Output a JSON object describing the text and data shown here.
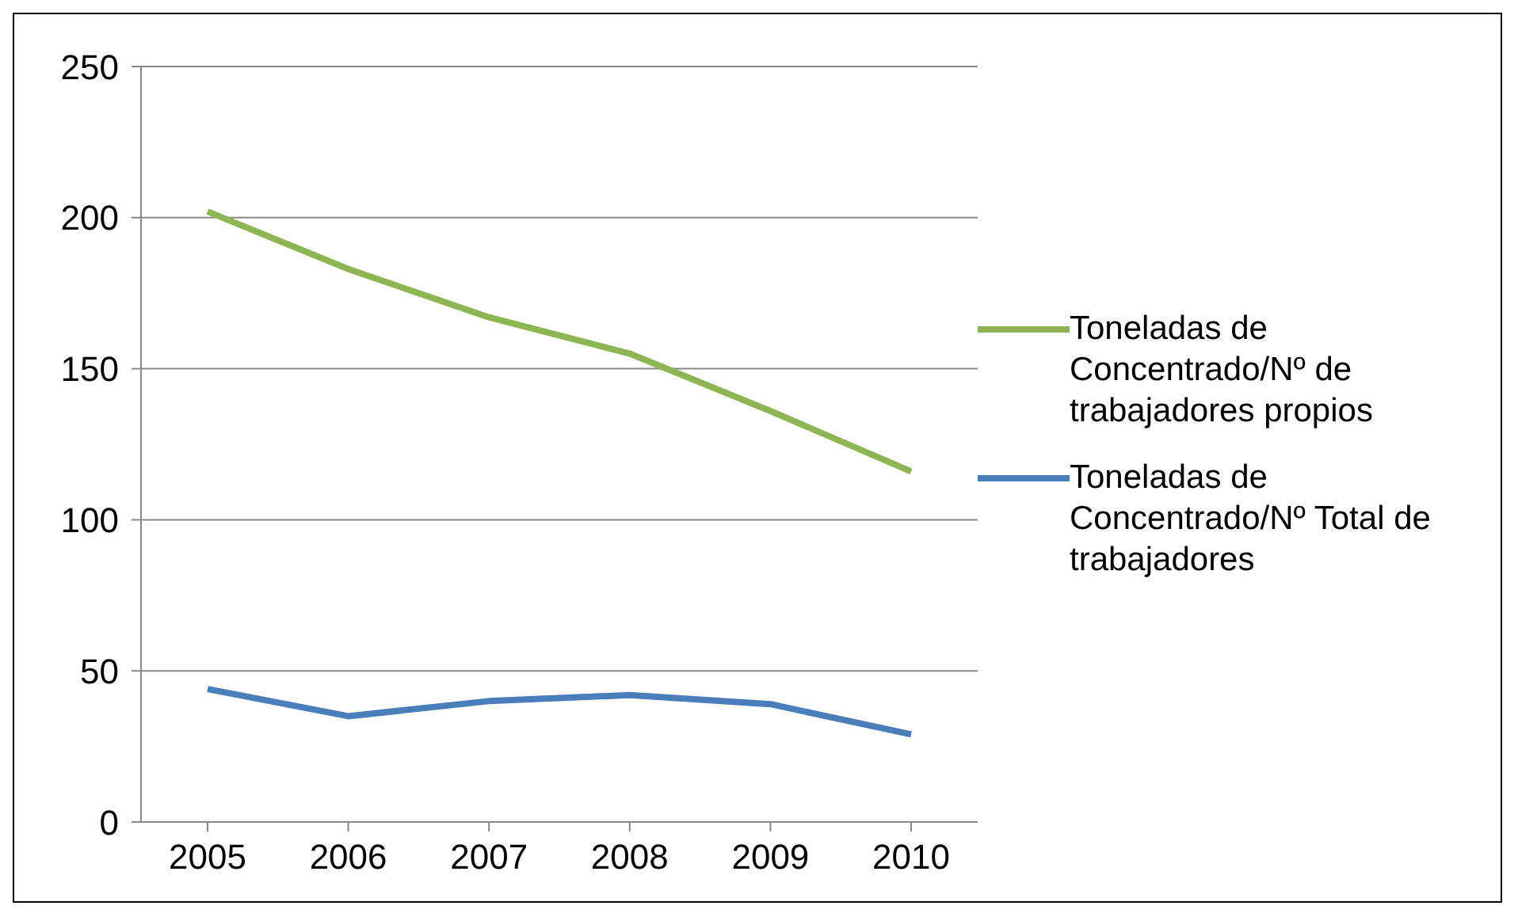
{
  "chart_data": {
    "type": "line",
    "categories": [
      "2005",
      "2006",
      "2007",
      "2008",
      "2009",
      "2010"
    ],
    "series": [
      {
        "name": "Toneladas de Concentrado/Nº de trabajadores propios",
        "color": "#8db554",
        "values": [
          202,
          183,
          167,
          155,
          136,
          116
        ]
      },
      {
        "name": "Toneladas de Concentrado/Nº Total de trabajadores",
        "color": "#4a7ebb",
        "values": [
          44,
          35,
          40,
          42,
          39,
          29
        ]
      }
    ],
    "ylim": [
      0,
      250
    ],
    "yticks": [
      0,
      50,
      100,
      150,
      200,
      250
    ],
    "grid": "y",
    "legend": "right",
    "marker": "none"
  }
}
